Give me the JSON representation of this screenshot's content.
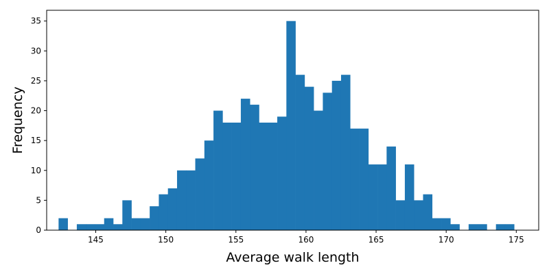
{
  "chart_data": {
    "type": "bar",
    "variant": "histogram",
    "xlabel": "Average walk length",
    "ylabel": "Frequency",
    "xlim": [
      141.5,
      176.6
    ],
    "ylim": [
      0,
      36.8
    ],
    "x_ticks": [
      145,
      150,
      155,
      160,
      165,
      170,
      175
    ],
    "y_ticks": [
      0,
      5,
      10,
      15,
      20,
      25,
      30,
      35
    ],
    "bar_color": "#1f77b4",
    "grid": false,
    "bins_start": 142.35,
    "bin_width": 0.65,
    "counts": [
      2,
      0,
      1,
      1,
      1,
      2,
      1,
      5,
      2,
      2,
      4,
      6,
      7,
      10,
      10,
      12,
      15,
      20,
      18,
      18,
      22,
      21,
      18,
      18,
      19,
      35,
      26,
      24,
      20,
      23,
      25,
      26,
      17,
      17,
      11,
      11,
      14,
      5,
      11,
      5,
      6,
      2,
      2,
      1,
      0,
      1,
      1,
      0,
      1,
      1
    ]
  }
}
